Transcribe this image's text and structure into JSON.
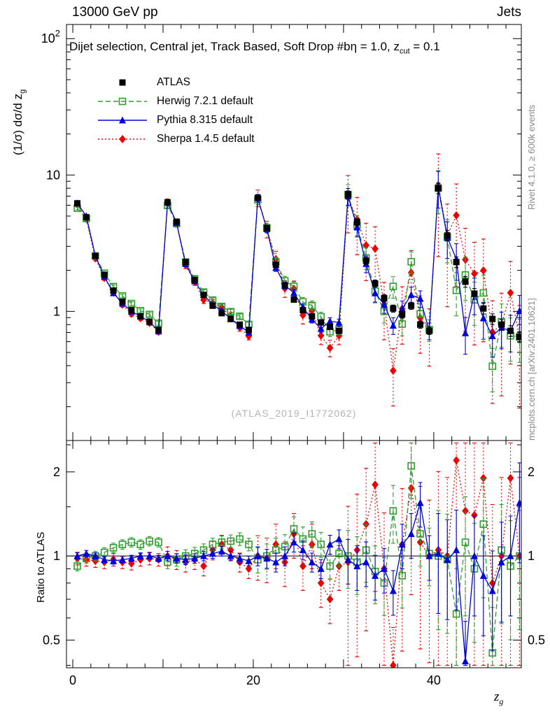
{
  "header": {
    "left": "13000 GeV pp",
    "right": "Jets"
  },
  "title": {
    "text": "Dijet selection, Central jet, Track Based, Soft Drop #bη = 1.0, z",
    "sub": "cut",
    "end": " = 0.1"
  },
  "side": {
    "rivet": "Rivet 4.1.0, ≥ 600k events",
    "mcplots": "mcplots.cern.ch [arXiv:2401.10621]"
  },
  "watermark": "(ATLAS_2019_I1772062)",
  "axes": {
    "main": {
      "ylabel_main": "(1/σ) dσ/d z",
      "ylabel_sub": "g",
      "yscale": "log",
      "ymin": 0.113,
      "ymax": 127,
      "yticks": [
        {
          "v": 1,
          "label": "1"
        },
        {
          "v": 10,
          "label": "10"
        },
        {
          "v": 100,
          "label": "10",
          "sup": "2"
        }
      ]
    },
    "ratio": {
      "ylabel": "Ratio to ATLAS",
      "yscale": "log",
      "ymin": 0.398,
      "ymax": 2.59,
      "yticks": [
        {
          "v": 0.5,
          "label": "0.5"
        },
        {
          "v": 1,
          "label": "1"
        },
        {
          "v": 2,
          "label": "2"
        }
      ],
      "yminor": [
        0.4,
        0.6,
        0.7,
        0.8,
        0.9,
        1.5,
        2.5
      ],
      "reference_line": 1
    },
    "x": {
      "label_main": "z",
      "label_sub": "g",
      "min": -0.7,
      "max": 49.7,
      "ticks": [
        {
          "v": 0,
          "label": "0"
        },
        {
          "v": 10,
          "label": ""
        },
        {
          "v": 20,
          "label": "20"
        },
        {
          "v": 30,
          "label": ""
        },
        {
          "v": 40,
          "label": "40"
        }
      ],
      "minor_step": 2
    }
  },
  "chart_data": {
    "type": "line",
    "x_first_center": 0.5,
    "x_bin_width": 1,
    "n_points": 50,
    "series": [
      {
        "name": "ATLAS",
        "color": "#000000",
        "marker": "square-filled",
        "line": "none",
        "values": [
          6.2,
          4.9,
          2.55,
          1.85,
          1.42,
          1.18,
          1.02,
          0.92,
          0.84,
          0.73,
          6.3,
          4.55,
          2.3,
          1.7,
          1.32,
          1.1,
          0.97,
          0.88,
          0.8,
          0.73,
          6.8,
          4.1,
          2.2,
          1.55,
          1.22,
          1.02,
          0.92,
          0.83,
          0.77,
          0.72,
          7.2,
          4.5,
          2.35,
          1.6,
          1.25,
          1.05,
          0.95,
          1.1,
          0.8,
          0.72,
          8.0,
          3.6,
          2.3,
          1.65,
          1.35,
          1.05,
          0.88,
          0.8,
          0.72,
          0.65
        ],
        "err_frac_by_decade": [
          0.02,
          0.03,
          0.04,
          0.06,
          0.09
        ]
      },
      {
        "name": "Herwig 7.2.1 default",
        "color": "#2f9e2f",
        "marker": "square-open",
        "line": "dashed",
        "ratio_to_atlas": [
          0.92,
          0.98,
          1.0,
          1.03,
          1.07,
          1.1,
          1.12,
          1.1,
          1.13,
          1.12,
          0.95,
          0.97,
          1.0,
          1.02,
          1.05,
          1.1,
          1.12,
          1.13,
          1.15,
          1.1,
          0.97,
          1.0,
          1.05,
          1.08,
          1.25,
          1.15,
          1.2,
          1.1,
          0.92,
          1.02,
          1.0,
          0.95,
          1.05,
          0.88,
          0.8,
          1.45,
          0.85,
          2.1,
          1.2,
          1.02,
          1.0,
          0.97,
          0.62,
          1.12,
          0.9,
          1.3,
          0.45,
          1.05,
          0.92,
          1.0
        ],
        "err_frac_by_decade": [
          0.03,
          0.04,
          0.08,
          0.18,
          0.35
        ]
      },
      {
        "name": "Pythia 8.315 default",
        "color": "#0000dd",
        "marker": "triangle-filled",
        "line": "solid",
        "ratio_to_atlas": [
          1.0,
          1.02,
          1.0,
          0.97,
          0.96,
          0.97,
          0.98,
          1.0,
          1.0,
          0.98,
          1.0,
          0.98,
          0.97,
          0.98,
          1.0,
          1.02,
          1.04,
          1.0,
          0.98,
          0.96,
          1.0,
          0.98,
          0.95,
          1.0,
          1.12,
          1.05,
          0.95,
          0.9,
          1.1,
          1.15,
          0.97,
          0.92,
          0.95,
          0.85,
          0.9,
          0.75,
          1.1,
          1.2,
          1.55,
          1.0,
          1.02,
          0.97,
          1.05,
          0.42,
          1.0,
          0.85,
          0.75,
          0.95,
          1.0,
          1.55
        ],
        "err_frac_by_decade": [
          0.02,
          0.03,
          0.06,
          0.14,
          0.3
        ]
      },
      {
        "name": "Sherpa 1.4.5 default",
        "color": "#ee0000",
        "marker": "diamond-filled",
        "line": "dotted",
        "ratio_to_atlas": [
          0.98,
          0.97,
          0.96,
          0.95,
          0.97,
          0.95,
          0.94,
          0.97,
          0.98,
          0.97,
          1.0,
          0.97,
          0.95,
          0.97,
          0.92,
          1.05,
          1.1,
          1.05,
          0.95,
          0.9,
          1.0,
          0.98,
          1.1,
          0.95,
          1.2,
          0.92,
          1.1,
          0.8,
          0.7,
          0.92,
          0.95,
          1.05,
          1.3,
          1.8,
          0.9,
          0.35,
          1.1,
          1.75,
          1.12,
          1.0,
          1.05,
          1.0,
          2.2,
          1.45,
          1.4,
          1.9,
          0.8,
          1.0,
          1.9,
          1.0
        ],
        "err_frac_by_decade": [
          0.04,
          0.06,
          0.14,
          0.45,
          0.7
        ]
      }
    ]
  }
}
